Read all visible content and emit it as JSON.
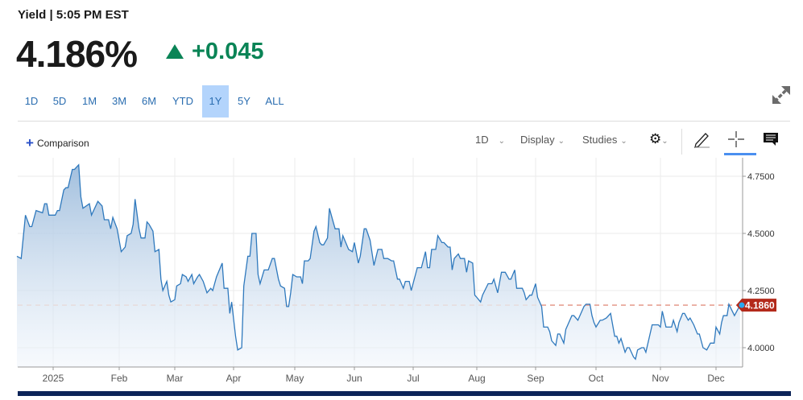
{
  "header": {
    "title": "Yield | 5:05 PM EST",
    "price": "4.186%",
    "change": "+0.045",
    "change_direction": "up",
    "change_color": "#0a8456"
  },
  "ranges": [
    "1D",
    "5D",
    "1M",
    "3M",
    "6M",
    "YTD",
    "1Y",
    "5Y",
    "ALL"
  ],
  "active_range": "1Y",
  "toolbar": {
    "comparison": "Comparison",
    "interval": "1D",
    "display": "Display",
    "studies": "Studies",
    "icons": [
      "gear-icon",
      "pencil-icon",
      "crosshair-icon",
      "comment-icon",
      "expand-icon"
    ]
  },
  "chart_data": {
    "type": "area",
    "line_color": "#2f79bd",
    "last_value_label": "4.1860",
    "last_value": 4.186,
    "last_value_color": "#b3291a",
    "ylim": [
      3.92,
      4.82
    ],
    "y_ticks": [
      "4.0000",
      "4.2500",
      "4.5000",
      "4.7500"
    ],
    "y_tick_values": [
      4.0,
      4.25,
      4.5,
      4.75
    ],
    "x_ticks": [
      "2025",
      "Feb",
      "Mar",
      "Apr",
      "May",
      "Jun",
      "Jul",
      "Aug",
      "Sep",
      "Oct",
      "Nov",
      "Dec"
    ],
    "grid": true,
    "points": [
      [
        "2024-12-15",
        4.4
      ],
      [
        "2024-12-17",
        4.39
      ],
      [
        "2024-12-19",
        4.58
      ],
      [
        "2024-12-21",
        4.53
      ],
      [
        "2024-12-22",
        4.53
      ],
      [
        "2024-12-24",
        4.6
      ],
      [
        "2024-12-27",
        4.59
      ],
      [
        "2024-12-28",
        4.63
      ],
      [
        "2024-12-29",
        4.63
      ],
      [
        "2024-12-30",
        4.58
      ],
      [
        "2025-01-02",
        4.58
      ],
      [
        "2025-01-03",
        4.6
      ],
      [
        "2025-01-04",
        4.6
      ],
      [
        "2025-01-06",
        4.69
      ],
      [
        "2025-01-07",
        4.7
      ],
      [
        "2025-01-08",
        4.7
      ],
      [
        "2025-01-10",
        4.78
      ],
      [
        "2025-01-11",
        4.78
      ],
      [
        "2025-01-13",
        4.8
      ],
      [
        "2025-01-14",
        4.66
      ],
      [
        "2025-01-15",
        4.61
      ],
      [
        "2025-01-18",
        4.63
      ],
      [
        "2025-01-19",
        4.58
      ],
      [
        "2025-01-22",
        4.64
      ],
      [
        "2025-01-24",
        4.62
      ],
      [
        "2025-01-25",
        4.56
      ],
      [
        "2025-01-27",
        4.56
      ],
      [
        "2025-01-28",
        4.52
      ],
      [
        "2025-01-29",
        4.57
      ],
      [
        "2025-01-31",
        4.52
      ],
      [
        "2025-02-02",
        4.42
      ],
      [
        "2025-02-04",
        4.44
      ],
      [
        "2025-02-05",
        4.49
      ],
      [
        "2025-02-07",
        4.5
      ],
      [
        "2025-02-08",
        4.54
      ],
      [
        "2025-02-09",
        4.65
      ],
      [
        "2025-02-11",
        4.52
      ],
      [
        "2025-02-12",
        4.48
      ],
      [
        "2025-02-14",
        4.48
      ],
      [
        "2025-02-15",
        4.55
      ],
      [
        "2025-02-16",
        4.54
      ],
      [
        "2025-02-18",
        4.51
      ],
      [
        "2025-02-19",
        4.42
      ],
      [
        "2025-02-21",
        4.43
      ],
      [
        "2025-02-22",
        4.3
      ],
      [
        "2025-02-23",
        4.25
      ],
      [
        "2025-02-25",
        4.29
      ],
      [
        "2025-02-26",
        4.23
      ],
      [
        "2025-02-27",
        4.2
      ],
      [
        "2025-03-01",
        4.21
      ],
      [
        "2025-03-02",
        4.27
      ],
      [
        "2025-03-04",
        4.28
      ],
      [
        "2025-03-05",
        4.32
      ],
      [
        "2025-03-07",
        4.31
      ],
      [
        "2025-03-08",
        4.29
      ],
      [
        "2025-03-10",
        4.32
      ],
      [
        "2025-03-11",
        4.28
      ],
      [
        "2025-03-13",
        4.31
      ],
      [
        "2025-03-14",
        4.32
      ],
      [
        "2025-03-16",
        4.29
      ],
      [
        "2025-03-18",
        4.24
      ],
      [
        "2025-03-20",
        4.26
      ],
      [
        "2025-03-21",
        4.25
      ],
      [
        "2025-03-23",
        4.31
      ],
      [
        "2025-03-26",
        4.37
      ],
      [
        "2025-03-27",
        4.26
      ],
      [
        "2025-03-29",
        4.26
      ],
      [
        "2025-03-30",
        4.15
      ],
      [
        "2025-03-31",
        4.2
      ],
      [
        "2025-04-02",
        4.05
      ],
      [
        "2025-04-03",
        3.99
      ],
      [
        "2025-04-05",
        4.0
      ],
      [
        "2025-04-06",
        4.27
      ],
      [
        "2025-04-08",
        4.4
      ],
      [
        "2025-04-09",
        4.4
      ],
      [
        "2025-04-10",
        4.5
      ],
      [
        "2025-04-12",
        4.5
      ],
      [
        "2025-04-13",
        4.32
      ],
      [
        "2025-04-14",
        4.28
      ],
      [
        "2025-04-16",
        4.34
      ],
      [
        "2025-04-18",
        4.34
      ],
      [
        "2025-04-20",
        4.39
      ],
      [
        "2025-04-21",
        4.39
      ],
      [
        "2025-04-23",
        4.3
      ],
      [
        "2025-04-24",
        4.27
      ],
      [
        "2025-04-26",
        4.26
      ],
      [
        "2025-04-27",
        4.18
      ],
      [
        "2025-04-28",
        4.18
      ],
      [
        "2025-04-29",
        4.24
      ],
      [
        "2025-04-30",
        4.32
      ],
      [
        "2025-05-02",
        4.31
      ],
      [
        "2025-05-04",
        4.31
      ],
      [
        "2025-05-05",
        4.28
      ],
      [
        "2025-05-06",
        4.38
      ],
      [
        "2025-05-08",
        4.38
      ],
      [
        "2025-05-09",
        4.39
      ],
      [
        "2025-05-11",
        4.51
      ],
      [
        "2025-05-12",
        4.53
      ],
      [
        "2025-05-14",
        4.46
      ],
      [
        "2025-05-15",
        4.45
      ],
      [
        "2025-05-16",
        4.45
      ],
      [
        "2025-05-18",
        4.48
      ],
      [
        "2025-05-19",
        4.61
      ],
      [
        "2025-05-21",
        4.55
      ],
      [
        "2025-05-22",
        4.52
      ],
      [
        "2025-05-24",
        4.52
      ],
      [
        "2025-05-25",
        4.44
      ],
      [
        "2025-05-26",
        4.49
      ],
      [
        "2025-05-29",
        4.43
      ],
      [
        "2025-05-31",
        4.42
      ],
      [
        "2025-06-01",
        4.46
      ],
      [
        "2025-06-03",
        4.37
      ],
      [
        "2025-06-04",
        4.4
      ],
      [
        "2025-06-06",
        4.52
      ],
      [
        "2025-06-07",
        4.52
      ],
      [
        "2025-06-09",
        4.47
      ],
      [
        "2025-06-11",
        4.36
      ],
      [
        "2025-06-13",
        4.43
      ],
      [
        "2025-06-15",
        4.43
      ],
      [
        "2025-06-16",
        4.39
      ],
      [
        "2025-06-18",
        4.39
      ],
      [
        "2025-06-20",
        4.38
      ],
      [
        "2025-06-21",
        4.38
      ],
      [
        "2025-06-23",
        4.3
      ],
      [
        "2025-06-24",
        4.3
      ],
      [
        "2025-06-26",
        4.26
      ],
      [
        "2025-06-27",
        4.29
      ],
      [
        "2025-06-29",
        4.29
      ],
      [
        "2025-06-30",
        4.25
      ],
      [
        "2025-07-03",
        4.35
      ],
      [
        "2025-07-05",
        4.35
      ],
      [
        "2025-07-07",
        4.42
      ],
      [
        "2025-07-08",
        4.35
      ],
      [
        "2025-07-09",
        4.35
      ],
      [
        "2025-07-10",
        4.43
      ],
      [
        "2025-07-12",
        4.43
      ],
      [
        "2025-07-13",
        4.49
      ],
      [
        "2025-07-15",
        4.46
      ],
      [
        "2025-07-16",
        4.46
      ],
      [
        "2025-07-18",
        4.44
      ],
      [
        "2025-07-19",
        4.44
      ],
      [
        "2025-07-20",
        4.34
      ],
      [
        "2025-07-21",
        4.39
      ],
      [
        "2025-07-23",
        4.41
      ],
      [
        "2025-07-24",
        4.39
      ],
      [
        "2025-07-26",
        4.39
      ],
      [
        "2025-07-27",
        4.33
      ],
      [
        "2025-07-28",
        4.38
      ],
      [
        "2025-07-30",
        4.37
      ],
      [
        "2025-07-31",
        4.23
      ],
      [
        "2025-08-01",
        4.22
      ],
      [
        "2025-08-03",
        4.2
      ],
      [
        "2025-08-04",
        4.23
      ],
      [
        "2025-08-07",
        4.28
      ],
      [
        "2025-08-09",
        4.28
      ],
      [
        "2025-08-10",
        4.3
      ],
      [
        "2025-08-12",
        4.24
      ],
      [
        "2025-08-14",
        4.33
      ],
      [
        "2025-08-16",
        4.33
      ],
      [
        "2025-08-18",
        4.3
      ],
      [
        "2025-08-19",
        4.3
      ],
      [
        "2025-08-21",
        4.34
      ],
      [
        "2025-08-22",
        4.26
      ],
      [
        "2025-08-24",
        4.26
      ],
      [
        "2025-08-25",
        4.26
      ],
      [
        "2025-08-26",
        4.24
      ],
      [
        "2025-08-27",
        4.21
      ],
      [
        "2025-08-29",
        4.23
      ],
      [
        "2025-08-30",
        4.23
      ],
      [
        "2025-09-01",
        4.28
      ],
      [
        "2025-09-02",
        4.22
      ],
      [
        "2025-09-04",
        4.18
      ],
      [
        "2025-09-05",
        4.09
      ],
      [
        "2025-09-07",
        4.09
      ],
      [
        "2025-09-08",
        4.07
      ],
      [
        "2025-09-09",
        4.03
      ],
      [
        "2025-09-11",
        4.01
      ],
      [
        "2025-09-12",
        4.06
      ],
      [
        "2025-09-13",
        4.06
      ],
      [
        "2025-09-15",
        4.02
      ],
      [
        "2025-09-16",
        4.08
      ],
      [
        "2025-09-19",
        4.14
      ],
      [
        "2025-09-20",
        4.14
      ],
      [
        "2025-09-22",
        4.12
      ],
      [
        "2025-09-23",
        4.14
      ],
      [
        "2025-09-25",
        4.18
      ],
      [
        "2025-09-26",
        4.19
      ],
      [
        "2025-09-28",
        4.19
      ],
      [
        "2025-09-29",
        4.14
      ],
      [
        "2025-09-30",
        4.11
      ],
      [
        "2025-10-01",
        4.09
      ],
      [
        "2025-10-03",
        4.12
      ],
      [
        "2025-10-04",
        4.12
      ],
      [
        "2025-10-06",
        4.13
      ],
      [
        "2025-10-08",
        4.15
      ],
      [
        "2025-10-10",
        4.05
      ],
      [
        "2025-10-11",
        4.05
      ],
      [
        "2025-10-12",
        4.02
      ],
      [
        "2025-10-13",
        4.04
      ],
      [
        "2025-10-15",
        3.98
      ],
      [
        "2025-10-16",
        4.0
      ],
      [
        "2025-10-17",
        4.0
      ],
      [
        "2025-10-19",
        3.96
      ],
      [
        "2025-10-20",
        3.95
      ],
      [
        "2025-10-21",
        3.99
      ],
      [
        "2025-10-23",
        4.0
      ],
      [
        "2025-10-24",
        4.0
      ],
      [
        "2025-10-25",
        3.98
      ],
      [
        "2025-10-27",
        4.06
      ],
      [
        "2025-10-28",
        4.1
      ],
      [
        "2025-10-29",
        4.1
      ],
      [
        "2025-10-31",
        4.1
      ],
      [
        "2025-11-01",
        4.09
      ],
      [
        "2025-11-02",
        4.16
      ],
      [
        "2025-11-04",
        4.09
      ],
      [
        "2025-11-07",
        4.09
      ],
      [
        "2025-11-08",
        4.12
      ],
      [
        "2025-11-10",
        4.07
      ],
      [
        "2025-11-11",
        4.11
      ],
      [
        "2025-11-13",
        4.15
      ],
      [
        "2025-11-14",
        4.15
      ],
      [
        "2025-11-16",
        4.12
      ],
      [
        "2025-11-17",
        4.13
      ],
      [
        "2025-11-19",
        4.1
      ],
      [
        "2025-11-21",
        4.06
      ],
      [
        "2025-11-22",
        4.06
      ],
      [
        "2025-11-24",
        4.0
      ],
      [
        "2025-11-26",
        3.99
      ],
      [
        "2025-11-28",
        4.02
      ],
      [
        "2025-11-30",
        4.02
      ],
      [
        "2025-12-01",
        4.09
      ],
      [
        "2025-12-03",
        4.06
      ],
      [
        "2025-12-04",
        4.11
      ],
      [
        "2025-12-05",
        4.14
      ],
      [
        "2025-12-07",
        4.14
      ],
      [
        "2025-12-08",
        4.19
      ],
      [
        "2025-12-11",
        4.14
      ],
      [
        "2025-12-14",
        4.186
      ]
    ]
  }
}
